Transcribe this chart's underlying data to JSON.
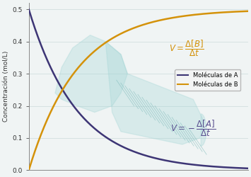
{
  "title": "",
  "ylabel": "Concentración (mol/L)",
  "xlim": [
    0,
    10
  ],
  "ylim": [
    0,
    0.52
  ],
  "yticks": [
    0.0,
    0.1,
    0.2,
    0.3,
    0.4,
    0.5
  ],
  "background_color": "#f0f4f4",
  "grid_color": "#c8d8d8",
  "line_A_color": "#3d3575",
  "line_B_color": "#d4920a",
  "annotation_B_color": "#d4920a",
  "annotation_A_color": "#5a5090",
  "watermark_color": "#9fd4d4",
  "legend_A": "Moléculas de A",
  "legend_B": "Moléculas de B",
  "decay_rate": 0.45,
  "initial_A": 0.5,
  "max_B": 0.5
}
